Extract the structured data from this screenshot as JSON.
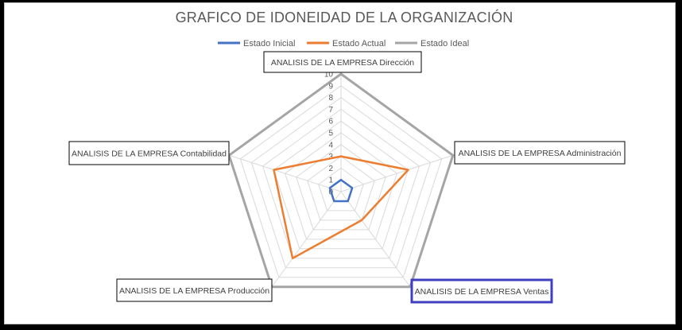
{
  "chart_data": {
    "type": "radar",
    "title": "GRAFICO DE IDONEIDAD DE LA ORGANIZACIÓN",
    "categories": [
      "ANALISIS DE LA EMPRESA Dirección",
      "ANALISIS DE LA EMPRESA Administración",
      "ANALISIS DE LA EMPRESA Ventas",
      "ANALISIS DE LA EMPRESA Producción",
      "ANALISIS DE LA EMPRESA Contabilidad"
    ],
    "series": [
      {
        "name": "Estado Inicial",
        "color": "#4472C4",
        "values": [
          1,
          1,
          1,
          1,
          1
        ]
      },
      {
        "name": "Estado Actual",
        "color": "#ED7D31",
        "values": [
          3,
          6,
          3,
          7,
          6
        ]
      },
      {
        "name": "Estado Ideal",
        "color": "#A5A5A5",
        "values": [
          10,
          10,
          10,
          10,
          10
        ]
      }
    ],
    "rlim": [
      0,
      10
    ],
    "ticks": [
      "0",
      "1",
      "2",
      "3",
      "4",
      "5",
      "6",
      "7",
      "8",
      "9",
      "10"
    ],
    "legend_position": "top",
    "grid": true,
    "highlighted_category": "ANALISIS DE LA EMPRESA Ventas",
    "highlight_color": "#3F3FBF"
  }
}
